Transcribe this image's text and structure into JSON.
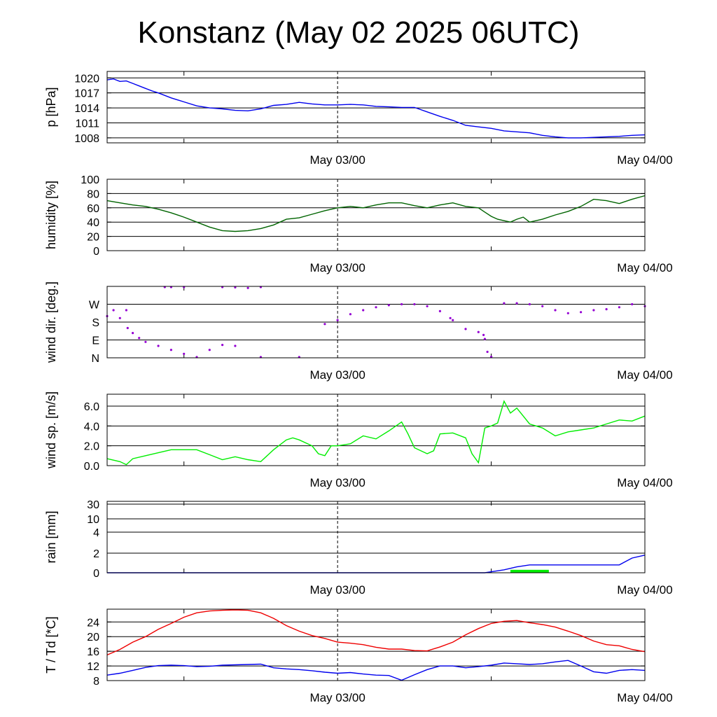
{
  "title": "Konstanz (May 02 2025 06UTC)",
  "x_tick_labels": [
    "May 03/00",
    "May 04/00"
  ],
  "chart_data": [
    {
      "type": "line",
      "ylabel": "p [hPa]",
      "y_tick_labels": [
        "1008",
        "1011",
        "1014",
        "1017",
        "1020"
      ],
      "y_ticks": [
        1008,
        1011,
        1014,
        1017,
        1020
      ],
      "ylim": [
        1007,
        1021.3
      ],
      "grid": true,
      "x_unit": "hours since May 02 06UTC",
      "xlim": [
        0,
        42
      ],
      "series": [
        {
          "color": "#0000ee",
          "style": "line",
          "x": [
            0,
            0.5,
            1,
            1.5,
            2,
            2.5,
            3,
            3.5,
            4,
            5,
            6,
            7,
            8,
            9,
            10,
            11,
            12,
            13,
            14,
            15,
            16,
            17,
            18,
            19,
            20,
            21,
            22,
            23,
            24,
            25,
            26,
            27,
            28,
            29,
            30,
            31,
            32,
            33,
            34,
            35,
            36,
            37,
            38,
            39,
            40,
            41,
            42
          ],
          "values": [
            1019.6,
            1019.8,
            1019.3,
            1019.4,
            1018.9,
            1018.4,
            1017.9,
            1017.4,
            1017.0,
            1016.0,
            1015.2,
            1014.4,
            1014.0,
            1013.8,
            1013.5,
            1013.4,
            1013.8,
            1014.5,
            1014.7,
            1015.1,
            1014.8,
            1014.6,
            1014.6,
            1014.7,
            1014.6,
            1014.3,
            1014.2,
            1014.1,
            1014.1,
            1013.2,
            1012.3,
            1011.5,
            1010.5,
            1010.2,
            1009.9,
            1009.4,
            1009.2,
            1009.0,
            1008.5,
            1008.2,
            1008.0,
            1008.0,
            1008.1,
            1008.2,
            1008.3,
            1008.5,
            1008.6
          ]
        }
      ]
    },
    {
      "type": "line",
      "ylabel": "humidity [%]",
      "y_tick_labels": [
        "0",
        "20",
        "40",
        "60",
        "80",
        "100"
      ],
      "y_ticks": [
        0,
        20,
        40,
        60,
        80,
        100
      ],
      "ylim": [
        0,
        100
      ],
      "grid": true,
      "x_unit": "hours since May 02 06UTC",
      "xlim": [
        0,
        42
      ],
      "series": [
        {
          "color": "#006400",
          "style": "line",
          "x": [
            0,
            1,
            2,
            3,
            4,
            5,
            6,
            7,
            8,
            9,
            10,
            11,
            12,
            13,
            14,
            15,
            16,
            17,
            18,
            19,
            20,
            21,
            22,
            23,
            24,
            25,
            26,
            27,
            28,
            29,
            29.5,
            30,
            30.5,
            31,
            31.5,
            32,
            32.5,
            33,
            34,
            35,
            36,
            37,
            38,
            39,
            40,
            41,
            42
          ],
          "values": [
            70,
            67,
            64,
            62,
            58,
            53,
            47,
            40,
            33,
            28,
            27,
            28,
            31,
            36,
            44,
            46,
            51,
            56,
            60,
            62,
            60,
            64,
            67,
            67,
            63,
            60,
            64,
            67,
            62,
            60,
            54,
            48,
            44,
            42,
            40,
            44,
            47,
            40,
            44,
            50,
            55,
            62,
            72,
            70,
            66,
            72,
            77
          ]
        }
      ]
    },
    {
      "type": "scatter",
      "ylabel": "wind dir. [deg.]",
      "y_tick_labels": [
        "N",
        "E",
        "S",
        "W"
      ],
      "y_ticks": [
        0,
        90,
        180,
        270
      ],
      "ylim": [
        0,
        360
      ],
      "grid": true,
      "x_unit": "hours since May 02 06UTC",
      "xlim": [
        0,
        42
      ],
      "series": [
        {
          "color": "#9400d3",
          "style": "dots",
          "x": [
            0,
            0.5,
            1,
            1.5,
            1.6,
            2,
            2.5,
            3,
            4,
            5,
            6,
            7,
            8,
            9,
            10,
            12,
            15,
            17,
            18,
            19,
            20,
            21,
            22,
            23,
            24,
            25,
            26,
            26.8,
            27,
            28,
            29,
            29.4,
            29.5,
            29.7,
            30,
            31,
            32,
            33,
            34,
            35,
            36,
            37,
            38,
            39,
            40,
            41,
            42
          ],
          "values": [
            210,
            240,
            200,
            240,
            150,
            125,
            100,
            80,
            60,
            40,
            20,
            0,
            40,
            65,
            60,
            0,
            0,
            170,
            190,
            220,
            240,
            255,
            265,
            270,
            270,
            260,
            235,
            200,
            190,
            145,
            130,
            115,
            95,
            30,
            5,
            275,
            275,
            270,
            260,
            240,
            225,
            230,
            240,
            245,
            255,
            270,
            260
          ]
        },
        {
          "color": "#9400d3",
          "style": "dots",
          "x": [
            4.5,
            5,
            6,
            9,
            10,
            11,
            12
          ],
          "values": [
            365,
            360,
            360,
            360,
            355,
            352,
            360
          ]
        }
      ]
    },
    {
      "type": "line",
      "ylabel": "wind sp. [m/s]",
      "y_tick_labels": [
        "0.0",
        "2.0",
        "4.0",
        "6.0"
      ],
      "y_ticks": [
        0,
        2,
        4,
        6
      ],
      "ylim": [
        0,
        7.2
      ],
      "grid": true,
      "x_unit": "hours since May 02 06UTC",
      "xlim": [
        0,
        42
      ],
      "series": [
        {
          "color": "#00ee00",
          "style": "line",
          "x": [
            0,
            1,
            1.5,
            2,
            3,
            4,
            5,
            6,
            7,
            8,
            9,
            10,
            11,
            12,
            13,
            14,
            14.5,
            15,
            16,
            16.5,
            17,
            17.5,
            18,
            19,
            20,
            21,
            22,
            23,
            23.5,
            24,
            25,
            25.5,
            26,
            27,
            28,
            28.5,
            29,
            29.5,
            30,
            30.5,
            31,
            31.5,
            32,
            32.5,
            33,
            34,
            35,
            36,
            37,
            38,
            39,
            40,
            41,
            42
          ],
          "values": [
            0.7,
            0.4,
            0.1,
            0.7,
            1.0,
            1.3,
            1.6,
            1.6,
            1.6,
            1.1,
            0.6,
            0.9,
            0.6,
            0.4,
            1.6,
            2.6,
            2.8,
            2.6,
            2.0,
            1.2,
            1.0,
            2.0,
            2.0,
            2.2,
            3.0,
            2.7,
            3.5,
            4.4,
            3.2,
            1.8,
            1.2,
            1.5,
            3.2,
            3.3,
            2.8,
            1.2,
            0.3,
            3.8,
            4.0,
            4.3,
            6.5,
            5.3,
            5.8,
            5.0,
            4.2,
            3.8,
            3.0,
            3.4,
            3.6,
            3.8,
            4.2,
            4.6,
            4.5,
            5.0
          ]
        }
      ]
    },
    {
      "type": "line",
      "ylabel": "rain [mm]",
      "y_tick_labels": [
        "0",
        "2",
        "4",
        "10",
        "30"
      ],
      "y_ticks": [
        0,
        2,
        4,
        10,
        30
      ],
      "ylim": [
        0,
        30
      ],
      "scale": "nonlinear",
      "grid": true,
      "x_unit": "hours since May 02 06UTC",
      "xlim": [
        0,
        42
      ],
      "series": [
        {
          "color": "#0000ee",
          "style": "line",
          "x": [
            0,
            26,
            29.5,
            30,
            31,
            32,
            33,
            34,
            38,
            40,
            41,
            42
          ],
          "values": [
            0,
            0,
            0,
            0.1,
            0.3,
            0.6,
            0.8,
            0.8,
            0.8,
            0.8,
            1.5,
            1.8
          ]
        },
        {
          "color": "#00ee00",
          "style": "bar",
          "x": [
            31.5,
            34.5
          ],
          "values": [
            0.3,
            0.3
          ]
        }
      ]
    },
    {
      "type": "line",
      "ylabel": "T / Td [*C]",
      "y_tick_labels": [
        "8",
        "12",
        "16",
        "20",
        "24"
      ],
      "y_ticks": [
        8,
        12,
        16,
        20,
        24
      ],
      "ylim": [
        8,
        27.5
      ],
      "grid": true,
      "x_unit": "hours since May 02 06UTC",
      "xlim": [
        0,
        42
      ],
      "series": [
        {
          "color": "#ee0000",
          "style": "line",
          "x": [
            0,
            1,
            2,
            3,
            4,
            5,
            6,
            7,
            8,
            9,
            10,
            11,
            12,
            13,
            14,
            15,
            16,
            17,
            18,
            19,
            20,
            21,
            22,
            23,
            24,
            25,
            26,
            27,
            28,
            29,
            30,
            31,
            32,
            33,
            34,
            35,
            36,
            37,
            38,
            39,
            40,
            41,
            42
          ],
          "values": [
            15,
            16.5,
            18.5,
            20,
            22,
            23.6,
            25.3,
            26.5,
            27.0,
            27.2,
            27.3,
            27.2,
            26.5,
            25,
            23,
            21.5,
            20.3,
            19.5,
            18.5,
            18.2,
            17.8,
            17.1,
            16.6,
            16.6,
            16.2,
            16.1,
            17.2,
            18.5,
            20.5,
            22.2,
            23.6,
            24.2,
            24.4,
            23.8,
            23.3,
            22.6,
            21.5,
            20.3,
            18.8,
            17.8,
            17.5,
            16.5,
            15.9
          ]
        },
        {
          "color": "#0000ee",
          "style": "line",
          "x": [
            0,
            1,
            2,
            3,
            4,
            5,
            6,
            7,
            8,
            9,
            10,
            11,
            12,
            13,
            14,
            15,
            16,
            17,
            18,
            19,
            20,
            21,
            22,
            23,
            24,
            25,
            26,
            27,
            28,
            29,
            30,
            31,
            32,
            33,
            34,
            35,
            36,
            37,
            38,
            39,
            40,
            41,
            42
          ],
          "values": [
            9.5,
            10,
            10.8,
            11.6,
            12.1,
            12.2,
            12.1,
            11.8,
            11.9,
            12.2,
            12.3,
            12.4,
            12.5,
            11.5,
            11.2,
            11.0,
            10.7,
            10.3,
            10.0,
            10.2,
            9.8,
            9.5,
            9.4,
            8.1,
            9.6,
            11.0,
            12.0,
            12.0,
            11.5,
            11.8,
            12.2,
            12.8,
            12.6,
            12.4,
            12.6,
            13.1,
            13.5,
            12.0,
            10.4,
            10.0,
            10.8,
            11.0,
            10.8
          ]
        }
      ]
    }
  ]
}
